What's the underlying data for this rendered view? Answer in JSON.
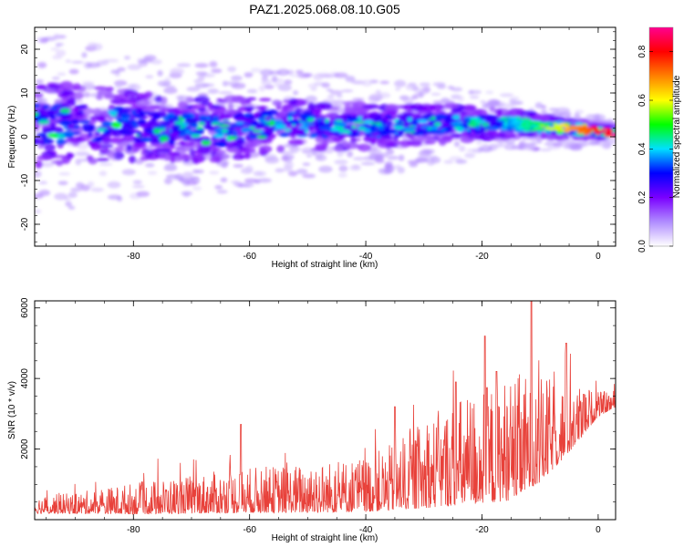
{
  "figure": {
    "title": "PAZ1.2025.068.08.10.G05"
  },
  "chart_data": [
    {
      "type": "heatmap",
      "xlabel": "Height of straight line (km)",
      "ylabel": "Frequency (Hz)",
      "xlim": [
        -97,
        3
      ],
      "ylim": [
        -25,
        25
      ],
      "xticks": [
        -80,
        -60,
        -40,
        -20,
        0
      ],
      "yticks": [
        -20,
        -10,
        0,
        10,
        20
      ],
      "xtick_labels": [
        "-80",
        "-60",
        "-40",
        "-20",
        "0"
      ],
      "ytick_labels": [
        "-20",
        "-10",
        "0",
        "10",
        "20"
      ],
      "colorbar": {
        "label": "Normalized spectral amplitude",
        "range": [
          0,
          0.9
        ],
        "ticks": [
          0,
          0.2,
          0.4,
          0.6,
          0.8
        ],
        "tick_labels": [
          "0.0",
          "0.2",
          "0.4",
          "0.6",
          "0.8"
        ],
        "colors": [
          "#ffffff",
          "#b08cff",
          "#7a00ff",
          "#0000ff",
          "#00e0ff",
          "#00ff00",
          "#ffff00",
          "#ff8000",
          "#ff0000",
          "#ff0090"
        ]
      },
      "ridge": {
        "x": [
          -95,
          -85,
          -75,
          -65,
          -55,
          -45,
          -35,
          -25,
          -15,
          -5,
          2
        ],
        "center_freq": [
          3,
          3,
          2,
          1.5,
          3,
          2.5,
          2.5,
          3,
          3,
          1.8,
          1
        ],
        "spread": [
          8,
          7,
          6,
          6,
          5,
          4.5,
          4,
          3.5,
          2.5,
          1.8,
          1.2
        ]
      }
    },
    {
      "type": "line",
      "xlabel": "Height of straight line (km)",
      "ylabel": "SNR (10 * v/v)",
      "xlim": [
        -97,
        3
      ],
      "ylim": [
        0,
        6200
      ],
      "xticks": [
        -80,
        -60,
        -40,
        -20,
        0
      ],
      "yticks": [
        2000,
        4000,
        6000
      ],
      "xtick_labels": [
        "-80",
        "-60",
        "-40",
        "-20",
        "0"
      ],
      "ytick_labels": [
        "2000",
        "4000",
        "6000"
      ],
      "color": "#e8413a",
      "envelope": {
        "x": [
          -97,
          -90,
          -80,
          -70,
          -60,
          -50,
          -40,
          -35,
          -30,
          -25,
          -20,
          -15,
          -10,
          -5,
          0,
          3
        ],
        "base": [
          300,
          320,
          380,
          450,
          520,
          550,
          620,
          750,
          950,
          1150,
          1300,
          1450,
          1800,
          2400,
          3100,
          3300
        ],
        "amp": [
          250,
          300,
          450,
          550,
          650,
          700,
          800,
          950,
          1250,
          1500,
          1700,
          1800,
          1500,
          1000,
          350,
          250
        ]
      },
      "peaks": [
        {
          "x": -61.5,
          "y": 2700
        },
        {
          "x": -35,
          "y": 3200
        },
        {
          "x": -24.5,
          "y": 3900
        },
        {
          "x": -19.5,
          "y": 5200
        },
        {
          "x": -17.5,
          "y": 4200
        },
        {
          "x": -11.5,
          "y": 6200
        },
        {
          "x": -5.5,
          "y": 5000
        },
        {
          "x": -2.5,
          "y": 3550
        }
      ]
    }
  ]
}
